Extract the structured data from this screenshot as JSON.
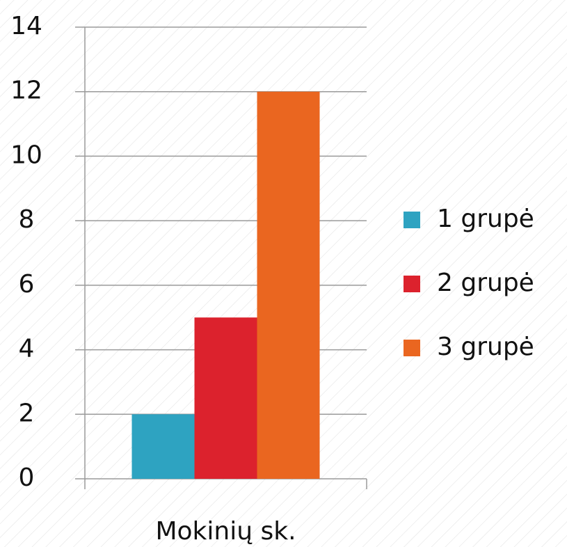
{
  "chart_data": {
    "type": "bar",
    "categories": [
      "Mokinių sk."
    ],
    "series": [
      {
        "name": "1 grupė",
        "color": "#2ea3c1",
        "values": [
          2
        ]
      },
      {
        "name": "2 grupė",
        "color": "#dc222d",
        "values": [
          5
        ]
      },
      {
        "name": "3 grupė",
        "color": "#ea6620",
        "values": [
          12
        ]
      }
    ],
    "ylim": [
      0,
      14
    ],
    "yticks": [
      0,
      2,
      4,
      6,
      8,
      10,
      12,
      14
    ],
    "grid": true,
    "legend": "right"
  }
}
